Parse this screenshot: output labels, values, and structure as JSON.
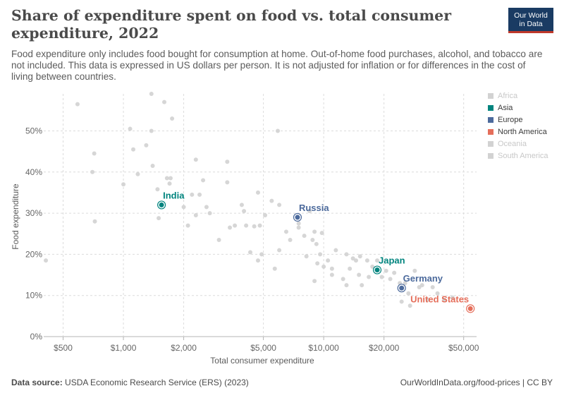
{
  "title": "Share of expenditure spent on food vs. total consumer expenditure, 2022",
  "subtitle": "Food expenditure only includes food bought for consumption at home. Out-of-home food purchases, alcohol, and tobacco are not included. This data is expressed in US dollars per person. It is not adjusted for inflation or for differences in the cost of living between countries.",
  "logo": {
    "line1": "Our World",
    "line2": "in Data"
  },
  "footer": {
    "source_label": "Data source:",
    "source_text": "USDA Economic Research Service (ERS) (2023)",
    "url": "OurWorldInData.org/food-prices | CC BY"
  },
  "colors": {
    "grey_point": "#d2d2d2",
    "asia": "#00847e",
    "europe": "#4c6a9c",
    "north_america": "#e56e5a",
    "grid": "#dcdcdc"
  },
  "legend": [
    {
      "label": "Africa",
      "color": "#d2d2d2",
      "active": false
    },
    {
      "label": "Asia",
      "color": "#00847e",
      "active": true
    },
    {
      "label": "Europe",
      "color": "#4c6a9c",
      "active": true
    },
    {
      "label": "North America",
      "color": "#e56e5a",
      "active": true
    },
    {
      "label": "Oceania",
      "color": "#d2d2d2",
      "active": false
    },
    {
      "label": "South America",
      "color": "#d2d2d2",
      "active": false
    }
  ],
  "chart_data": {
    "type": "scatter",
    "xlabel": "Total consumer expenditure",
    "ylabel": "Food expenditure",
    "x_scale": "log",
    "xlim": [
      400,
      58000
    ],
    "ylim": [
      0,
      0.59
    ],
    "x_ticks": [
      {
        "value": 500,
        "label": "$500"
      },
      {
        "value": 1000,
        "label": "$1,000"
      },
      {
        "value": 2000,
        "label": "$2,000"
      },
      {
        "value": 5000,
        "label": "$5,000"
      },
      {
        "value": 10000,
        "label": "$10,000"
      },
      {
        "value": 20000,
        "label": "$20,000"
      },
      {
        "value": 50000,
        "label": "$50,000"
      }
    ],
    "y_ticks": [
      {
        "value": 0,
        "label": "0%"
      },
      {
        "value": 0.1,
        "label": "10%"
      },
      {
        "value": 0.2,
        "label": "20%"
      },
      {
        "value": 0.3,
        "label": "30%"
      },
      {
        "value": 0.4,
        "label": "40%"
      },
      {
        "value": 0.5,
        "label": "50%"
      }
    ],
    "grid": true,
    "legend_position": "right",
    "highlighted": [
      {
        "name": "India",
        "x": 1550,
        "y": 0.32,
        "region": "Asia"
      },
      {
        "name": "Russia",
        "x": 7400,
        "y": 0.29,
        "region": "Europe"
      },
      {
        "name": "Japan",
        "x": 18500,
        "y": 0.162,
        "region": "Asia"
      },
      {
        "name": "Germany",
        "x": 24500,
        "y": 0.118,
        "region": "Europe"
      },
      {
        "name": "United States",
        "x": 54000,
        "y": 0.068,
        "region": "North America"
      }
    ],
    "other_points": [
      [
        410,
        0.185
      ],
      [
        590,
        0.565
      ],
      [
        700,
        0.4
      ],
      [
        715,
        0.445
      ],
      [
        720,
        0.28
      ],
      [
        1000,
        0.37
      ],
      [
        1080,
        0.505
      ],
      [
        1120,
        0.455
      ],
      [
        1180,
        0.395
      ],
      [
        1300,
        0.465
      ],
      [
        1380,
        0.59
      ],
      [
        1380,
        0.5
      ],
      [
        1400,
        0.415
      ],
      [
        1480,
        0.358
      ],
      [
        1500,
        0.288
      ],
      [
        1600,
        0.57
      ],
      [
        1650,
        0.385
      ],
      [
        1700,
        0.372
      ],
      [
        1720,
        0.385
      ],
      [
        1750,
        0.53
      ],
      [
        2000,
        0.315
      ],
      [
        2100,
        0.27
      ],
      [
        2200,
        0.345
      ],
      [
        2300,
        0.295
      ],
      [
        2300,
        0.43
      ],
      [
        2400,
        0.345
      ],
      [
        2500,
        0.38
      ],
      [
        2600,
        0.315
      ],
      [
        2700,
        0.3
      ],
      [
        3000,
        0.235
      ],
      [
        3300,
        0.425
      ],
      [
        3300,
        0.375
      ],
      [
        3400,
        0.265
      ],
      [
        3600,
        0.27
      ],
      [
        3900,
        0.32
      ],
      [
        4000,
        0.305
      ],
      [
        4100,
        0.27
      ],
      [
        4300,
        0.205
      ],
      [
        4500,
        0.268
      ],
      [
        4700,
        0.185
      ],
      [
        4700,
        0.35
      ],
      [
        4800,
        0.27
      ],
      [
        4900,
        0.2
      ],
      [
        5100,
        0.295
      ],
      [
        5500,
        0.33
      ],
      [
        5700,
        0.165
      ],
      [
        5900,
        0.5
      ],
      [
        6000,
        0.21
      ],
      [
        6000,
        0.32
      ],
      [
        6500,
        0.255
      ],
      [
        6800,
        0.235
      ],
      [
        7500,
        0.265
      ],
      [
        7500,
        0.275
      ],
      [
        8000,
        0.245
      ],
      [
        8200,
        0.195
      ],
      [
        8500,
        0.305
      ],
      [
        8800,
        0.235
      ],
      [
        9000,
        0.255
      ],
      [
        9000,
        0.135
      ],
      [
        9200,
        0.225
      ],
      [
        9300,
        0.178
      ],
      [
        9600,
        0.2
      ],
      [
        9800,
        0.252
      ],
      [
        10000,
        0.17
      ],
      [
        10500,
        0.185
      ],
      [
        11000,
        0.165
      ],
      [
        11000,
        0.15
      ],
      [
        11500,
        0.21
      ],
      [
        12500,
        0.14
      ],
      [
        13000,
        0.2
      ],
      [
        13000,
        0.125
      ],
      [
        13500,
        0.165
      ],
      [
        14000,
        0.19
      ],
      [
        14500,
        0.185
      ],
      [
        15000,
        0.15
      ],
      [
        15200,
        0.195
      ],
      [
        15500,
        0.125
      ],
      [
        16500,
        0.185
      ],
      [
        16800,
        0.145
      ],
      [
        17500,
        0.17
      ],
      [
        18500,
        0.185
      ],
      [
        19500,
        0.145
      ],
      [
        20500,
        0.16
      ],
      [
        21500,
        0.14
      ],
      [
        22500,
        0.155
      ],
      [
        24000,
        0.13
      ],
      [
        24500,
        0.085
      ],
      [
        25500,
        0.13
      ],
      [
        26500,
        0.105
      ],
      [
        27000,
        0.075
      ],
      [
        28500,
        0.16
      ],
      [
        30000,
        0.12
      ],
      [
        31000,
        0.125
      ],
      [
        33000,
        0.09
      ],
      [
        35000,
        0.12
      ],
      [
        37000,
        0.105
      ],
      [
        40000,
        0.09
      ],
      [
        44000,
        0.095
      ]
    ]
  }
}
